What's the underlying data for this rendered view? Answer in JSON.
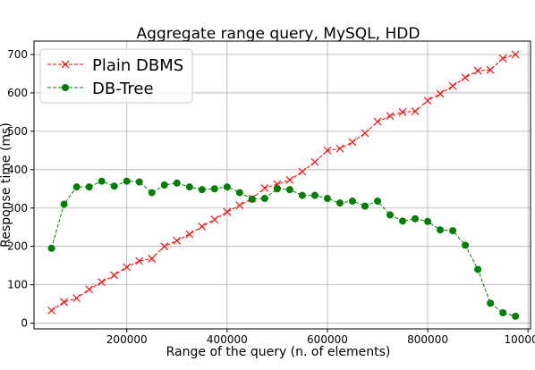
{
  "chart_data": {
    "type": "line",
    "title": "Aggregate range query, MySQL, HDD",
    "xlabel": "Range of the query  (n. of elements)",
    "ylabel": "Response time (ms)",
    "xlim": [
      15000,
      1005000
    ],
    "ylim": [
      -15,
      735
    ],
    "xticks": [
      200000,
      400000,
      600000,
      800000,
      1000000
    ],
    "xtick_labels": [
      "200000",
      "400000",
      "600000",
      "800000",
      "1000000"
    ],
    "yticks": [
      0,
      100,
      200,
      300,
      400,
      500,
      600,
      700
    ],
    "ytick_labels": [
      "0",
      "100",
      "200",
      "300",
      "400",
      "500",
      "600",
      "700"
    ],
    "grid": true,
    "legend_position": "upper left",
    "x": [
      50000,
      75000,
      100000,
      125000,
      150000,
      175000,
      200000,
      225000,
      250000,
      275000,
      300000,
      325000,
      350000,
      375000,
      400000,
      425000,
      450000,
      475000,
      500000,
      525000,
      550000,
      575000,
      600000,
      625000,
      650000,
      675000,
      700000,
      725000,
      750000,
      775000,
      800000,
      825000,
      850000,
      875000,
      900000,
      925000,
      950000,
      975000
    ],
    "series": [
      {
        "name": "Plain DBMS",
        "color": "#ff0000",
        "marker": "x",
        "values": [
          33,
          55,
          65,
          88,
          107,
          125,
          146,
          162,
          168,
          200,
          215,
          232,
          252,
          270,
          290,
          307,
          325,
          352,
          362,
          373,
          395,
          420,
          450,
          455,
          472,
          495,
          525,
          540,
          550,
          552,
          580,
          598,
          618,
          640,
          658,
          660,
          690,
          700
        ]
      },
      {
        "name": "DB-Tree",
        "color": "#008000",
        "marker": "o",
        "values": [
          195,
          310,
          355,
          355,
          370,
          357,
          370,
          368,
          340,
          360,
          365,
          355,
          348,
          350,
          355,
          340,
          323,
          325,
          350,
          348,
          333,
          333,
          325,
          313,
          318,
          305,
          318,
          282,
          266,
          272,
          265,
          243,
          241,
          203,
          140,
          52,
          27,
          18
        ]
      }
    ]
  }
}
